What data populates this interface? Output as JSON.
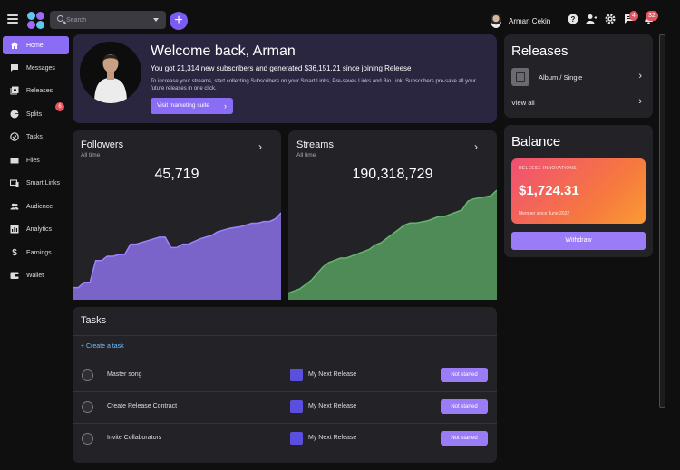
{
  "topbar": {
    "search_placeholder": "Search",
    "user_name": "Arman Cekin",
    "messages_badge": "4",
    "notifications_badge": "32"
  },
  "sidebar": {
    "items": [
      {
        "label": "Home",
        "icon": "home-icon",
        "active": true
      },
      {
        "label": "Messages",
        "icon": "messages-icon"
      },
      {
        "label": "Releases",
        "icon": "releases-icon"
      },
      {
        "label": "Splits",
        "icon": "splits-icon"
      },
      {
        "label": "Tasks",
        "icon": "tasks-icon"
      },
      {
        "label": "Files",
        "icon": "folder-icon"
      },
      {
        "label": "Smart Links",
        "icon": "smart-links-icon"
      },
      {
        "label": "Audience",
        "icon": "audience-icon"
      },
      {
        "label": "Analytics",
        "icon": "analytics-icon"
      },
      {
        "label": "Earnings",
        "icon": "dollar-icon"
      },
      {
        "label": "Wallet",
        "icon": "wallet-icon"
      }
    ],
    "splits_badge": "6"
  },
  "welcome": {
    "title": "Welcome back, Arman",
    "stat": "You got 21,314 new subscribers and generated $36,151.21 since joining Releese",
    "desc": "To increase your streams, start collecting Subscribers on your Smart Links, Pre-saves Links and Bio Link. Subscribers pre-save all your future releases in one click.",
    "cta": "Visit marketing suite"
  },
  "followers": {
    "title": "Followers",
    "sub": "All time",
    "value": "45,719",
    "color": "#7a63c9",
    "series": [
      0.14,
      0.14,
      0.2,
      0.2,
      0.45,
      0.45,
      0.5,
      0.5,
      0.52,
      0.52,
      0.64,
      0.64,
      0.66,
      0.68,
      0.7,
      0.72,
      0.72,
      0.6,
      0.6,
      0.64,
      0.64,
      0.67,
      0.7,
      0.72,
      0.74,
      0.78,
      0.8,
      0.82,
      0.83,
      0.84,
      0.86,
      0.88,
      0.88,
      0.9,
      0.9,
      0.93,
      1.0
    ]
  },
  "streams": {
    "title": "Streams",
    "sub": "All time",
    "value": "190,318,729",
    "color": "#4e8b56",
    "series": [
      0.06,
      0.08,
      0.1,
      0.14,
      0.18,
      0.24,
      0.3,
      0.34,
      0.36,
      0.38,
      0.38,
      0.4,
      0.42,
      0.44,
      0.46,
      0.5,
      0.52,
      0.56,
      0.6,
      0.64,
      0.68,
      0.7,
      0.7,
      0.71,
      0.72,
      0.74,
      0.76,
      0.76,
      0.78,
      0.8,
      0.82,
      0.9,
      0.92,
      0.93,
      0.94,
      0.95,
      1.0
    ]
  },
  "tasks": {
    "title": "Tasks",
    "create": "+ Create a task",
    "rows": [
      {
        "name": "Master song",
        "release": "My Next Release",
        "status": "Not started"
      },
      {
        "name": "Create Release Contract",
        "release": "My Next Release",
        "status": "Not started"
      },
      {
        "name": "Invite Collaborators",
        "release": "My Next Release",
        "status": "Not started"
      }
    ]
  },
  "releases": {
    "title": "Releases",
    "item": "Album / Single",
    "view_all": "View all"
  },
  "balance": {
    "title": "Balance",
    "org": "RELEESE INNOVATIONS",
    "amount": "$1,724.31",
    "since": "Member since June 2022",
    "withdraw": "Withdraw"
  }
}
